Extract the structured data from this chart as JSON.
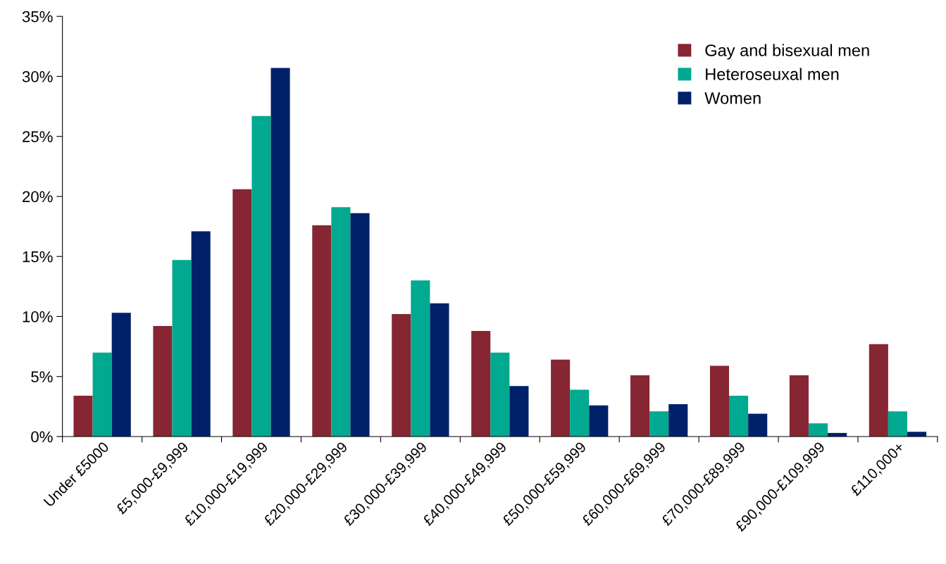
{
  "chart_data": {
    "type": "bar",
    "categories": [
      "Under £5000",
      "£5,000-£9,999",
      "£10,000-£19,999",
      "£20,000-£29,999",
      "£30,000-£39,999",
      "£40,000-£49,999",
      "£50,000-£59,999",
      "£60,000-£69,999",
      "£70,000-£89,999",
      "£90,000-£109,999",
      "£110,000+"
    ],
    "series": [
      {
        "name": "Gay and bisexual men",
        "color": "#862633",
        "values": [
          3.4,
          9.2,
          20.6,
          17.6,
          10.2,
          8.8,
          6.4,
          5.1,
          5.9,
          5.1,
          7.7
        ]
      },
      {
        "name": "Heteroseuxal men",
        "color": "#00a98f",
        "values": [
          7.0,
          14.7,
          26.7,
          19.1,
          13.0,
          7.0,
          3.9,
          2.1,
          3.4,
          1.1,
          2.1
        ]
      },
      {
        "name": "Women",
        "color": "#002169",
        "values": [
          10.3,
          17.1,
          30.7,
          18.6,
          11.1,
          4.2,
          2.6,
          2.7,
          1.9,
          0.3,
          0.4
        ]
      }
    ],
    "ylim": [
      0,
      35
    ],
    "yticks": [
      {
        "value": 0,
        "label": "0%"
      },
      {
        "value": 5,
        "label": "5%"
      },
      {
        "value": 10,
        "label": "10%"
      },
      {
        "value": 15,
        "label": "15%"
      },
      {
        "value": 20,
        "label": "20%"
      },
      {
        "value": 25,
        "label": "25%"
      },
      {
        "value": 30,
        "label": "30%"
      },
      {
        "value": 35,
        "label": "35%"
      }
    ],
    "grid": false,
    "legend": "top right"
  }
}
